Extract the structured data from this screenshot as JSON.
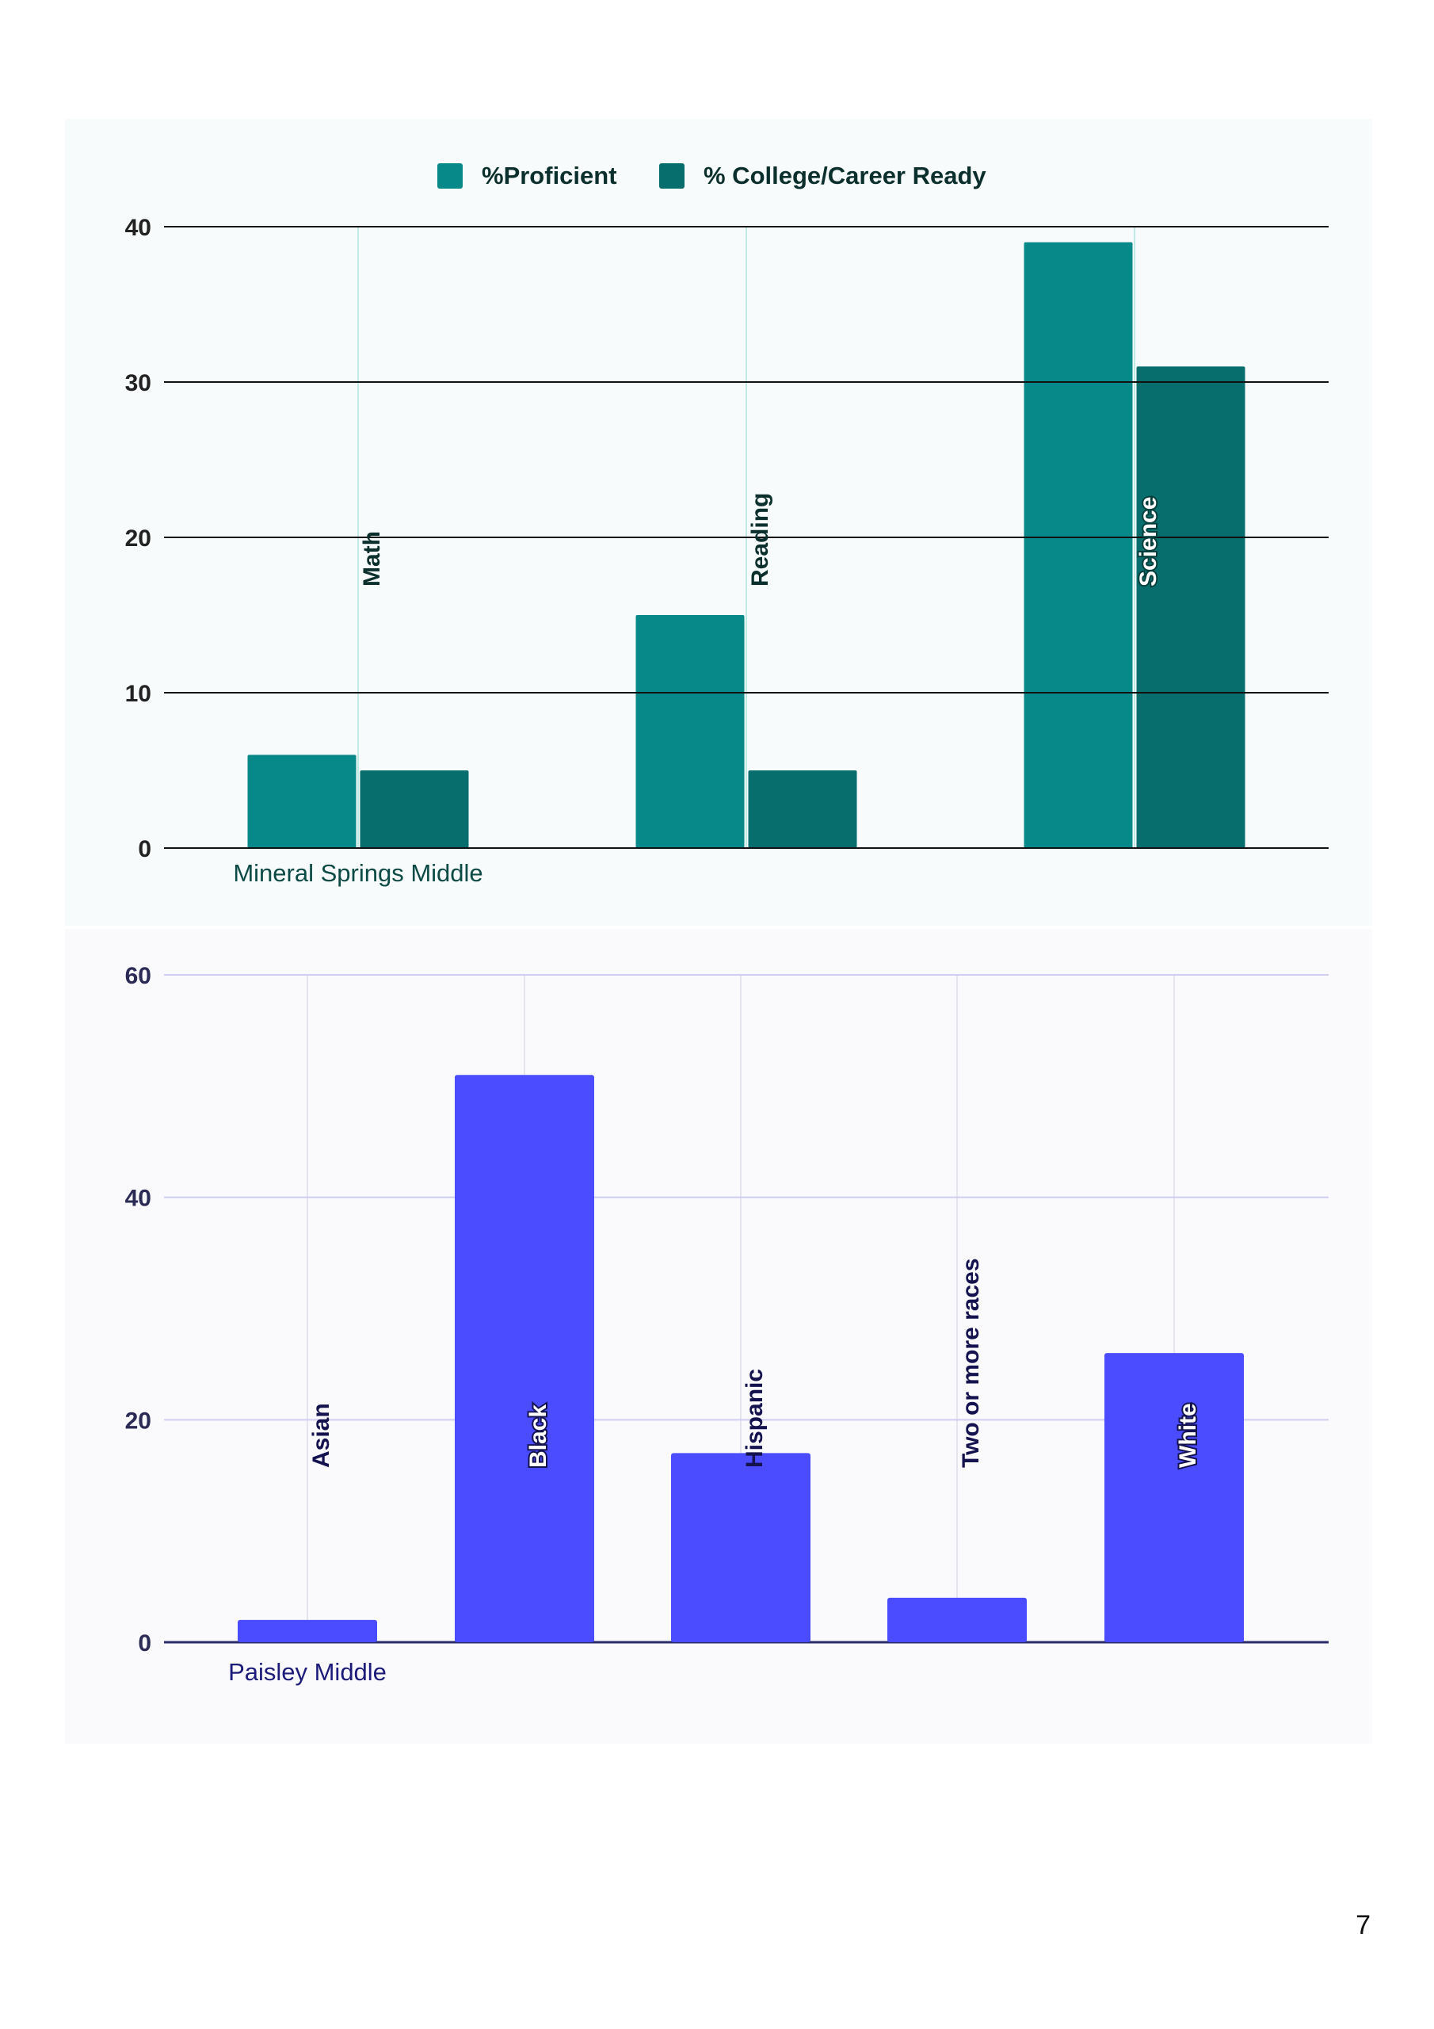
{
  "page_number": "7",
  "chart_data": [
    {
      "type": "bar",
      "legend_position": "top-center",
      "legend_label_proficient": "%Proficient",
      "legend_label_ccr": "% College/Career Ready",
      "categories": [
        "Math",
        "Reading",
        "Science"
      ],
      "series": [
        {
          "name": "%Proficient",
          "values": [
            6,
            15,
            39
          ],
          "color": "#07898a"
        },
        {
          "name": "% College/Career Ready",
          "values": [
            5,
            5,
            31
          ],
          "color": "#076e6d"
        }
      ],
      "xlabel": "Mineral Springs Middle",
      "ylim": [
        0,
        40
      ],
      "yticks": [
        0,
        10,
        20,
        30,
        40
      ],
      "grid": true,
      "colors": {
        "label": "#0b4a45",
        "axis_text": "#222222",
        "grid": "#111111",
        "vgrid": "#bfeae6"
      }
    },
    {
      "type": "bar",
      "categories": [
        "Asian",
        "Black",
        "Hispanic",
        "Two or more races",
        "White"
      ],
      "series": [
        {
          "values": [
            2,
            51,
            17,
            4,
            26
          ],
          "color": "#4b4cff"
        }
      ],
      "xlabel": "Paisley Middle",
      "ylim": [
        0,
        60
      ],
      "yticks": [
        0,
        20,
        40,
        60
      ],
      "grid": true,
      "colors": {
        "label": "#1c1b7a",
        "axis_text": "#2b2b55",
        "grid": "#cfcdf0",
        "vgrid": "#e4e4ee"
      }
    }
  ]
}
